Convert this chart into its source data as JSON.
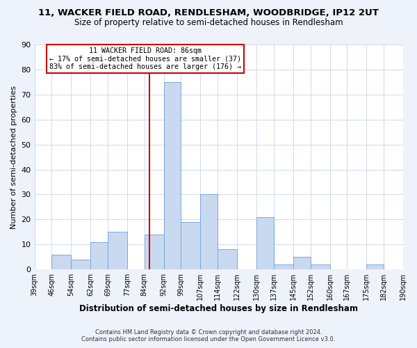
{
  "title": "11, WACKER FIELD ROAD, RENDLESHAM, WOODBRIDGE, IP12 2UT",
  "subtitle": "Size of property relative to semi-detached houses in Rendlesham",
  "xlabel": "Distribution of semi-detached houses by size in Rendlesham",
  "ylabel": "Number of semi-detached properties",
  "footer_line1": "Contains HM Land Registry data © Crown copyright and database right 2024.",
  "footer_line2": "Contains public sector information licensed under the Open Government Licence v3.0.",
  "bar_edges": [
    39,
    46,
    54,
    62,
    69,
    77,
    84,
    92,
    99,
    107,
    114,
    122,
    130,
    137,
    145,
    152,
    160,
    167,
    175,
    182,
    190
  ],
  "bar_heights": [
    0,
    6,
    4,
    11,
    15,
    0,
    14,
    75,
    19,
    30,
    8,
    0,
    21,
    2,
    5,
    2,
    0,
    0,
    2,
    0
  ],
  "bar_color": "#c9d9f0",
  "bar_edge_color": "#7aa8d8",
  "property_line_x": 86,
  "property_line_color": "#cc0000",
  "annotation_title": "11 WACKER FIELD ROAD: 86sqm",
  "annotation_line1": "← 17% of semi-detached houses are smaller (37)",
  "annotation_line2": "83% of semi-detached houses are larger (176) →",
  "annotation_box_color": "#ffffff",
  "annotation_box_edge": "#cc0000",
  "ylim": [
    0,
    90
  ],
  "yticks": [
    0,
    10,
    20,
    30,
    40,
    50,
    60,
    70,
    80,
    90
  ],
  "bg_color": "#eef2fb",
  "plot_bg_color": "#ffffff",
  "tick_labels": [
    "39sqm",
    "46sqm",
    "54sqm",
    "62sqm",
    "69sqm",
    "77sqm",
    "84sqm",
    "92sqm",
    "99sqm",
    "107sqm",
    "114sqm",
    "122sqm",
    "130sqm",
    "137sqm",
    "145sqm",
    "152sqm",
    "160sqm",
    "167sqm",
    "175sqm",
    "182sqm",
    "190sqm"
  ]
}
